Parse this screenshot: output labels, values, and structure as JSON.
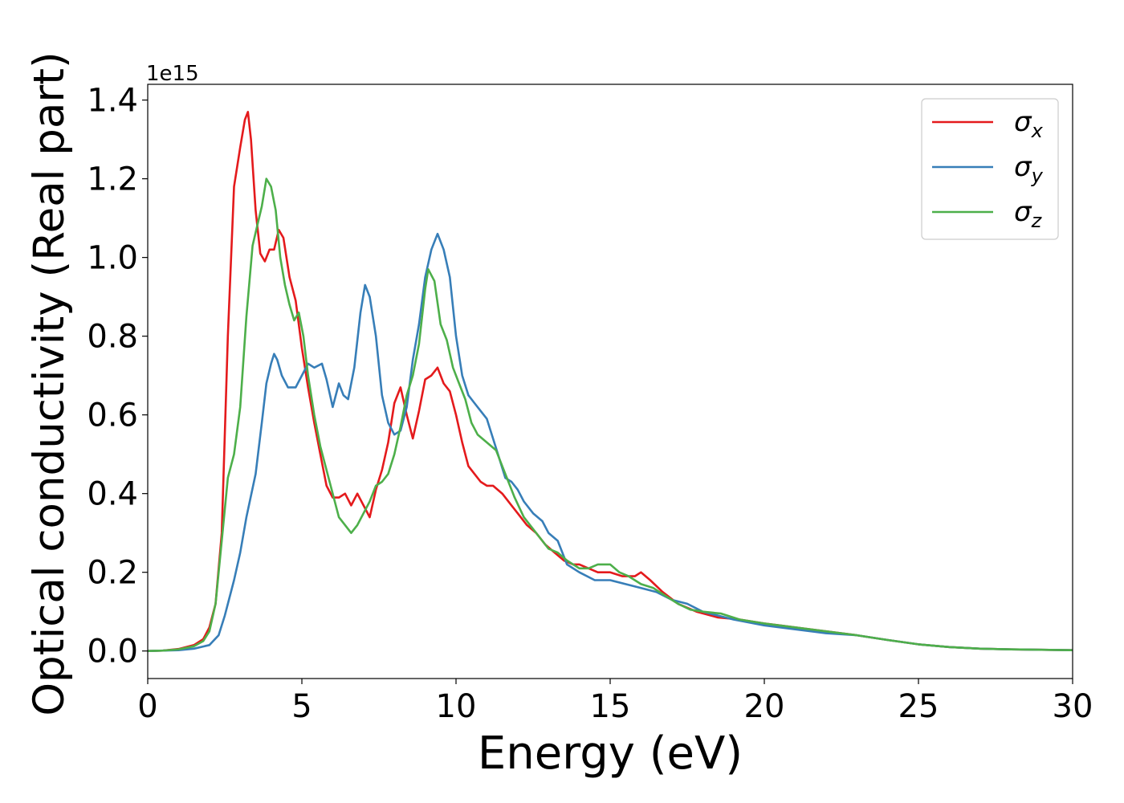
{
  "chart_data": {
    "type": "line",
    "title": "",
    "xlabel": "Energy (eV)",
    "ylabel": "Optical conductivity (Real part)",
    "y_offset_text": "1e15",
    "y_multiplier": 1000000000000000.0,
    "xlim": [
      0,
      30
    ],
    "ylim": [
      -0.07,
      1.44
    ],
    "xticks": [
      0,
      5,
      10,
      15,
      20,
      25,
      30
    ],
    "xtick_labels": [
      "0",
      "5",
      "10",
      "15",
      "20",
      "25",
      "30"
    ],
    "yticks": [
      0.0,
      0.2,
      0.4,
      0.6,
      0.8,
      1.0,
      1.2,
      1.4
    ],
    "ytick_labels": [
      "0.0",
      "0.2",
      "0.4",
      "0.6",
      "0.8",
      "1.0",
      "1.2",
      "1.4"
    ],
    "grid": false,
    "legend_position": "top-right",
    "series": [
      {
        "name": "σx",
        "legend_base": "σ",
        "legend_sub": "x",
        "color": "#e41a1c",
        "points": [
          [
            0,
            0
          ],
          [
            0.5,
            0.001
          ],
          [
            1.0,
            0.005
          ],
          [
            1.5,
            0.015
          ],
          [
            1.8,
            0.03
          ],
          [
            2.0,
            0.06
          ],
          [
            2.2,
            0.12
          ],
          [
            2.4,
            0.3
          ],
          [
            2.6,
            0.8
          ],
          [
            2.8,
            1.18
          ],
          [
            3.0,
            1.28
          ],
          [
            3.15,
            1.35
          ],
          [
            3.25,
            1.37
          ],
          [
            3.35,
            1.3
          ],
          [
            3.5,
            1.12
          ],
          [
            3.65,
            1.01
          ],
          [
            3.8,
            0.99
          ],
          [
            3.95,
            1.02
          ],
          [
            4.1,
            1.02
          ],
          [
            4.25,
            1.07
          ],
          [
            4.4,
            1.05
          ],
          [
            4.6,
            0.95
          ],
          [
            4.8,
            0.89
          ],
          [
            5.0,
            0.77
          ],
          [
            5.2,
            0.67
          ],
          [
            5.4,
            0.58
          ],
          [
            5.6,
            0.5
          ],
          [
            5.8,
            0.42
          ],
          [
            6.0,
            0.39
          ],
          [
            6.2,
            0.39
          ],
          [
            6.4,
            0.4
          ],
          [
            6.6,
            0.37
          ],
          [
            6.8,
            0.4
          ],
          [
            7.0,
            0.37
          ],
          [
            7.2,
            0.34
          ],
          [
            7.4,
            0.41
          ],
          [
            7.6,
            0.46
          ],
          [
            7.8,
            0.53
          ],
          [
            8.0,
            0.63
          ],
          [
            8.2,
            0.67
          ],
          [
            8.4,
            0.6
          ],
          [
            8.6,
            0.54
          ],
          [
            8.8,
            0.61
          ],
          [
            9.0,
            0.69
          ],
          [
            9.2,
            0.7
          ],
          [
            9.4,
            0.72
          ],
          [
            9.6,
            0.68
          ],
          [
            9.8,
            0.66
          ],
          [
            10.0,
            0.6
          ],
          [
            10.2,
            0.53
          ],
          [
            10.4,
            0.47
          ],
          [
            10.6,
            0.45
          ],
          [
            10.8,
            0.43
          ],
          [
            11.0,
            0.42
          ],
          [
            11.2,
            0.42
          ],
          [
            11.5,
            0.4
          ],
          [
            11.8,
            0.37
          ],
          [
            12.0,
            0.35
          ],
          [
            12.3,
            0.32
          ],
          [
            12.6,
            0.3
          ],
          [
            12.9,
            0.27
          ],
          [
            13.2,
            0.25
          ],
          [
            13.5,
            0.23
          ],
          [
            13.8,
            0.22
          ],
          [
            14.0,
            0.22
          ],
          [
            14.3,
            0.21
          ],
          [
            14.6,
            0.2
          ],
          [
            15.0,
            0.2
          ],
          [
            15.4,
            0.19
          ],
          [
            15.8,
            0.19
          ],
          [
            16.0,
            0.2
          ],
          [
            16.3,
            0.18
          ],
          [
            16.7,
            0.15
          ],
          [
            17.2,
            0.12
          ],
          [
            17.8,
            0.1
          ],
          [
            18.5,
            0.085
          ],
          [
            19.2,
            0.08
          ],
          [
            20.0,
            0.07
          ],
          [
            20.5,
            0.065
          ],
          [
            21.0,
            0.06
          ],
          [
            22.0,
            0.05
          ],
          [
            23.0,
            0.04
          ],
          [
            24.0,
            0.028
          ],
          [
            25.0,
            0.017
          ],
          [
            26.0,
            0.01
          ],
          [
            27.0,
            0.006
          ],
          [
            28.0,
            0.004
          ],
          [
            29.0,
            0.003
          ],
          [
            30.0,
            0.002
          ]
        ]
      },
      {
        "name": "σy",
        "legend_base": "σ",
        "legend_sub": "y",
        "color": "#377eb8",
        "points": [
          [
            0,
            0
          ],
          [
            0.5,
            0.001
          ],
          [
            1.0,
            0.002
          ],
          [
            1.5,
            0.006
          ],
          [
            2.0,
            0.015
          ],
          [
            2.3,
            0.04
          ],
          [
            2.5,
            0.09
          ],
          [
            2.8,
            0.18
          ],
          [
            3.0,
            0.25
          ],
          [
            3.2,
            0.34
          ],
          [
            3.5,
            0.45
          ],
          [
            3.7,
            0.58
          ],
          [
            3.85,
            0.68
          ],
          [
            4.0,
            0.73
          ],
          [
            4.1,
            0.755
          ],
          [
            4.2,
            0.74
          ],
          [
            4.35,
            0.7
          ],
          [
            4.55,
            0.67
          ],
          [
            4.8,
            0.67
          ],
          [
            5.0,
            0.7
          ],
          [
            5.2,
            0.73
          ],
          [
            5.4,
            0.72
          ],
          [
            5.65,
            0.73
          ],
          [
            5.8,
            0.69
          ],
          [
            6.0,
            0.62
          ],
          [
            6.2,
            0.68
          ],
          [
            6.35,
            0.65
          ],
          [
            6.5,
            0.64
          ],
          [
            6.7,
            0.72
          ],
          [
            6.9,
            0.86
          ],
          [
            7.05,
            0.93
          ],
          [
            7.2,
            0.9
          ],
          [
            7.4,
            0.8
          ],
          [
            7.6,
            0.65
          ],
          [
            7.8,
            0.58
          ],
          [
            8.0,
            0.55
          ],
          [
            8.2,
            0.56
          ],
          [
            8.4,
            0.62
          ],
          [
            8.6,
            0.74
          ],
          [
            8.8,
            0.83
          ],
          [
            9.0,
            0.95
          ],
          [
            9.2,
            1.02
          ],
          [
            9.4,
            1.06
          ],
          [
            9.6,
            1.02
          ],
          [
            9.8,
            0.95
          ],
          [
            10.0,
            0.8
          ],
          [
            10.2,
            0.7
          ],
          [
            10.4,
            0.65
          ],
          [
            10.6,
            0.63
          ],
          [
            10.8,
            0.61
          ],
          [
            11.0,
            0.59
          ],
          [
            11.2,
            0.54
          ],
          [
            11.4,
            0.49
          ],
          [
            11.6,
            0.44
          ],
          [
            11.8,
            0.43
          ],
          [
            12.0,
            0.41
          ],
          [
            12.2,
            0.38
          ],
          [
            12.5,
            0.35
          ],
          [
            12.8,
            0.33
          ],
          [
            13.0,
            0.3
          ],
          [
            13.3,
            0.28
          ],
          [
            13.6,
            0.22
          ],
          [
            14.0,
            0.2
          ],
          [
            14.5,
            0.18
          ],
          [
            15.0,
            0.18
          ],
          [
            15.5,
            0.17
          ],
          [
            16.0,
            0.16
          ],
          [
            16.5,
            0.15
          ],
          [
            17.0,
            0.13
          ],
          [
            17.5,
            0.12
          ],
          [
            18.0,
            0.1
          ],
          [
            18.5,
            0.09
          ],
          [
            19.0,
            0.08
          ],
          [
            20.0,
            0.065
          ],
          [
            21.0,
            0.055
          ],
          [
            22.0,
            0.045
          ],
          [
            23.0,
            0.04
          ],
          [
            24.0,
            0.028
          ],
          [
            25.0,
            0.017
          ],
          [
            26.0,
            0.01
          ],
          [
            27.0,
            0.006
          ],
          [
            28.0,
            0.004
          ],
          [
            29.0,
            0.003
          ],
          [
            30.0,
            0.002
          ]
        ]
      },
      {
        "name": "σz",
        "legend_base": "σ",
        "legend_sub": "z",
        "color": "#4daf4a",
        "points": [
          [
            0,
            0
          ],
          [
            0.5,
            0.001
          ],
          [
            1.0,
            0.004
          ],
          [
            1.5,
            0.012
          ],
          [
            1.8,
            0.025
          ],
          [
            2.0,
            0.05
          ],
          [
            2.2,
            0.12
          ],
          [
            2.4,
            0.28
          ],
          [
            2.6,
            0.44
          ],
          [
            2.8,
            0.5
          ],
          [
            3.0,
            0.62
          ],
          [
            3.2,
            0.85
          ],
          [
            3.4,
            1.03
          ],
          [
            3.55,
            1.08
          ],
          [
            3.7,
            1.13
          ],
          [
            3.85,
            1.2
          ],
          [
            4.0,
            1.18
          ],
          [
            4.15,
            1.12
          ],
          [
            4.3,
            1.0
          ],
          [
            4.45,
            0.93
          ],
          [
            4.6,
            0.88
          ],
          [
            4.75,
            0.84
          ],
          [
            4.9,
            0.86
          ],
          [
            5.05,
            0.8
          ],
          [
            5.2,
            0.7
          ],
          [
            5.4,
            0.6
          ],
          [
            5.6,
            0.52
          ],
          [
            5.8,
            0.46
          ],
          [
            6.0,
            0.4
          ],
          [
            6.2,
            0.34
          ],
          [
            6.4,
            0.32
          ],
          [
            6.6,
            0.3
          ],
          [
            6.8,
            0.32
          ],
          [
            7.0,
            0.35
          ],
          [
            7.2,
            0.38
          ],
          [
            7.4,
            0.42
          ],
          [
            7.6,
            0.43
          ],
          [
            7.8,
            0.45
          ],
          [
            8.0,
            0.5
          ],
          [
            8.2,
            0.57
          ],
          [
            8.4,
            0.65
          ],
          [
            8.6,
            0.7
          ],
          [
            8.8,
            0.78
          ],
          [
            9.0,
            0.92
          ],
          [
            9.1,
            0.97
          ],
          [
            9.3,
            0.94
          ],
          [
            9.5,
            0.83
          ],
          [
            9.7,
            0.79
          ],
          [
            9.9,
            0.72
          ],
          [
            10.1,
            0.68
          ],
          [
            10.3,
            0.64
          ],
          [
            10.5,
            0.58
          ],
          [
            10.7,
            0.55
          ],
          [
            11.0,
            0.53
          ],
          [
            11.3,
            0.51
          ],
          [
            11.6,
            0.45
          ],
          [
            11.9,
            0.39
          ],
          [
            12.2,
            0.34
          ],
          [
            12.5,
            0.31
          ],
          [
            12.8,
            0.28
          ],
          [
            13.0,
            0.26
          ],
          [
            13.3,
            0.25
          ],
          [
            13.6,
            0.23
          ],
          [
            14.0,
            0.21
          ],
          [
            14.3,
            0.21
          ],
          [
            14.6,
            0.22
          ],
          [
            15.0,
            0.22
          ],
          [
            15.3,
            0.2
          ],
          [
            15.6,
            0.19
          ],
          [
            16.0,
            0.17
          ],
          [
            16.4,
            0.16
          ],
          [
            16.8,
            0.14
          ],
          [
            17.2,
            0.12
          ],
          [
            17.6,
            0.105
          ],
          [
            18.0,
            0.1
          ],
          [
            18.6,
            0.095
          ],
          [
            19.2,
            0.08
          ],
          [
            20.0,
            0.07
          ],
          [
            21.0,
            0.06
          ],
          [
            22.0,
            0.05
          ],
          [
            23.0,
            0.04
          ],
          [
            24.0,
            0.028
          ],
          [
            25.0,
            0.017
          ],
          [
            26.0,
            0.01
          ],
          [
            27.0,
            0.006
          ],
          [
            28.0,
            0.004
          ],
          [
            29.0,
            0.003
          ],
          [
            30.0,
            0.002
          ]
        ]
      }
    ]
  }
}
